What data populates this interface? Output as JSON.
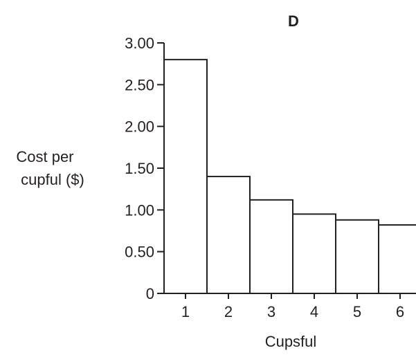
{
  "chart_data": {
    "type": "bar",
    "title": "D",
    "xlabel": "Cupsful",
    "ylabel": [
      "Cost per",
      "cupful ($)"
    ],
    "categories": [
      "1",
      "2",
      "3",
      "4",
      "5",
      "6"
    ],
    "values": [
      2.8,
      1.4,
      1.12,
      0.95,
      0.88,
      0.82
    ],
    "ylim": [
      0,
      3.0
    ],
    "yticks": [
      {
        "value": 0,
        "label": "0"
      },
      {
        "value": 0.5,
        "label": "0.50"
      },
      {
        "value": 1.0,
        "label": "1.00"
      },
      {
        "value": 1.5,
        "label": "1.50"
      },
      {
        "value": 2.0,
        "label": "2.00"
      },
      {
        "value": 2.5,
        "label": "2.50"
      },
      {
        "value": 3.0,
        "label": "3.00"
      }
    ],
    "grid": false,
    "colors": {
      "bar_fill": "#ffffff",
      "bar_stroke": "#231f20",
      "text": "#231f20"
    }
  }
}
